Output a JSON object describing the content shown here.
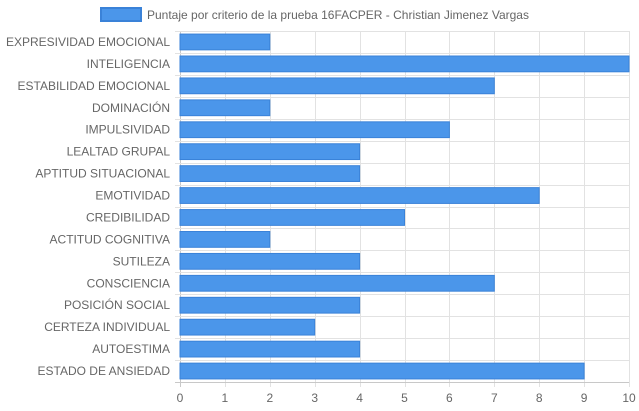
{
  "chart_data": {
    "type": "bar",
    "orientation": "horizontal",
    "title": "",
    "xlabel": "",
    "ylabel": "",
    "xlim": [
      0,
      10
    ],
    "xticks": [
      0,
      1,
      2,
      3,
      4,
      5,
      6,
      7,
      8,
      9,
      10
    ],
    "grid": true,
    "legend_position": "top",
    "categories": [
      "EXPRESIVIDAD EMOCIONAL",
      "INTELIGENCIA",
      "ESTABILIDAD EMOCIONAL",
      "DOMINACIÓN",
      "IMPULSIVIDAD",
      "LEALTAD GRUPAL",
      "APTITUD SITUACIONAL",
      "EMOTIVIDAD",
      "CREDIBILIDAD",
      "ACTITUD COGNITIVA",
      "SUTILEZA",
      "CONSCIENCIA",
      "POSICIÓN SOCIAL",
      "CERTEZA INDIVIDUAL",
      "AUTOESTIMA",
      "ESTADO DE ANSIEDAD"
    ],
    "series": [
      {
        "name": "Puntaje por criterio de la prueba 16FACPER - Christian Jimenez Vargas",
        "color": "#4b96ea",
        "border_color": "#3a82d8",
        "values": [
          2,
          10,
          7,
          2,
          6,
          4,
          4,
          8,
          5,
          2,
          4,
          7,
          4,
          3,
          4,
          9
        ]
      }
    ]
  }
}
